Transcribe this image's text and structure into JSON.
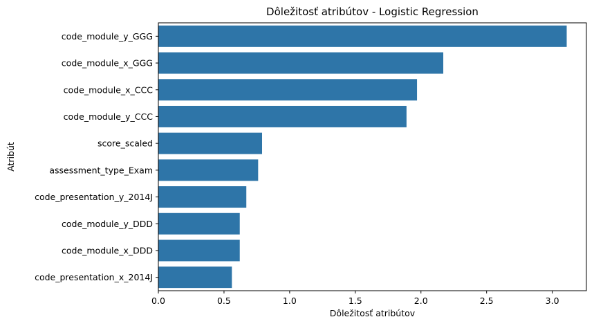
{
  "chart_data": {
    "type": "bar",
    "orientation": "horizontal",
    "title": "Dôležitosť atribútov - Logistic Regression",
    "xlabel": "Dôležitosť atribútov",
    "ylabel": "Atribút",
    "categories": [
      "code_module_y_GGG",
      "code_module_x_GGG",
      "code_module_x_CCC",
      "code_module_y_CCC",
      "score_scaled",
      "assessment_type_Exam",
      "code_presentation_y_2014J",
      "code_module_y_DDD",
      "code_module_x_DDD",
      "code_presentation_x_2014J"
    ],
    "values": [
      3.11,
      2.17,
      1.97,
      1.89,
      0.79,
      0.76,
      0.67,
      0.62,
      0.62,
      0.56
    ],
    "xlim": [
      0,
      3.26
    ],
    "xticks": [
      0.0,
      0.5,
      1.0,
      1.5,
      2.0,
      2.5,
      3.0
    ],
    "xtick_labels": [
      "0.0",
      "0.5",
      "1.0",
      "1.5",
      "2.0",
      "2.5",
      "3.0"
    ],
    "bar_color": "#2e75a8",
    "grid": false,
    "legend": "none"
  }
}
